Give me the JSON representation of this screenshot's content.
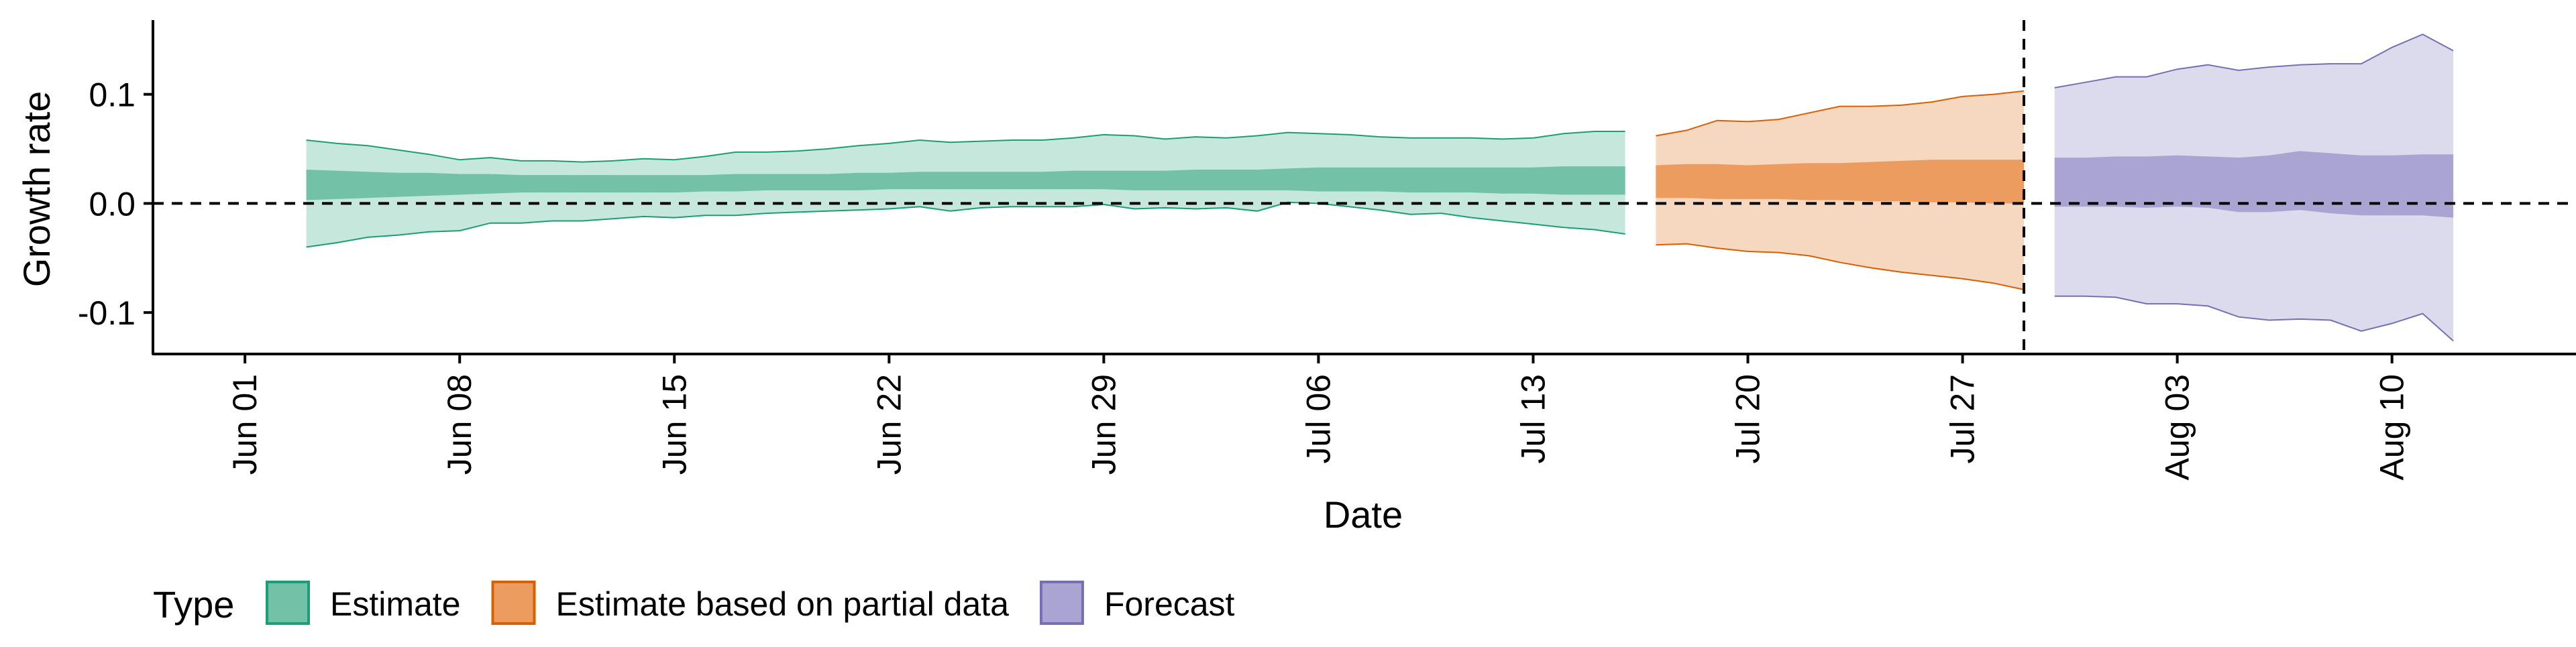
{
  "chart_data": {
    "type": "area",
    "title": "",
    "xlabel": "Date",
    "ylabel": "Growth rate",
    "xlim": [
      "2021-05-29",
      "2021-08-16"
    ],
    "ylim": [
      -0.138,
      0.168
    ],
    "x_ticks": [
      "2021-06-01",
      "2021-06-08",
      "2021-06-15",
      "2021-06-22",
      "2021-06-29",
      "2021-07-06",
      "2021-07-13",
      "2021-07-20",
      "2021-07-27",
      "2021-08-03",
      "2021-08-10"
    ],
    "x_tick_labels": [
      "Jun 01",
      "Jun 08",
      "Jun 15",
      "Jun 22",
      "Jun 29",
      "Jul 06",
      "Jul 13",
      "Jul 20",
      "Jul 27",
      "Aug 03",
      "Aug 10"
    ],
    "y_ticks": [
      -0.1,
      0.0,
      0.1
    ],
    "y_tick_labels": [
      "-0.1",
      "0.0",
      "0.1"
    ],
    "reference_lines": [
      {
        "axis": "y",
        "value": 0.0,
        "style": "dashed",
        "color": "#000000"
      },
      {
        "axis": "x",
        "value": "2021-07-29",
        "style": "dashed",
        "color": "#000000"
      }
    ],
    "grid": false,
    "legend": {
      "title": "Type",
      "position": "bottom-left",
      "entries": [
        {
          "label": "Estimate",
          "fill": "#73c2a7",
          "stroke": "#1b9e77"
        },
        {
          "label": "Estimate based on partial data",
          "fill": "#ec9c5e",
          "stroke": "#d95f02"
        },
        {
          "label": "Forecast",
          "fill": "#a9a4d2",
          "stroke": "#7570b3"
        }
      ]
    },
    "series": [
      {
        "name": "Estimate",
        "type": "Estimate",
        "line_color": "#1b9e77",
        "outer_fill": "#c5e7dc",
        "inner_fill": "#73c2a7",
        "x": [
          "2021-06-03",
          "2021-06-04",
          "2021-06-05",
          "2021-06-06",
          "2021-06-07",
          "2021-06-08",
          "2021-06-09",
          "2021-06-10",
          "2021-06-11",
          "2021-06-12",
          "2021-06-13",
          "2021-06-14",
          "2021-06-15",
          "2021-06-16",
          "2021-06-17",
          "2021-06-18",
          "2021-06-19",
          "2021-06-20",
          "2021-06-21",
          "2021-06-22",
          "2021-06-23",
          "2021-06-24",
          "2021-06-25",
          "2021-06-26",
          "2021-06-27",
          "2021-06-28",
          "2021-06-29",
          "2021-06-30",
          "2021-07-01",
          "2021-07-02",
          "2021-07-03",
          "2021-07-04",
          "2021-07-05",
          "2021-07-06",
          "2021-07-07",
          "2021-07-08",
          "2021-07-09",
          "2021-07-10",
          "2021-07-11",
          "2021-07-12",
          "2021-07-13",
          "2021-07-14",
          "2021-07-15",
          "2021-07-16"
        ],
        "upper_90": [
          0.058,
          0.055,
          0.053,
          0.049,
          0.045,
          0.04,
          0.042,
          0.039,
          0.039,
          0.038,
          0.039,
          0.041,
          0.04,
          0.043,
          0.047,
          0.047,
          0.048,
          0.05,
          0.053,
          0.055,
          0.058,
          0.056,
          0.057,
          0.058,
          0.058,
          0.06,
          0.063,
          0.062,
          0.059,
          0.061,
          0.06,
          0.062,
          0.065,
          0.064,
          0.063,
          0.061,
          0.06,
          0.06,
          0.06,
          0.059,
          0.06,
          0.064,
          0.066,
          0.066
        ],
        "upper_50": [
          0.031,
          0.03,
          0.029,
          0.028,
          0.028,
          0.027,
          0.027,
          0.026,
          0.026,
          0.026,
          0.026,
          0.026,
          0.026,
          0.026,
          0.027,
          0.027,
          0.027,
          0.027,
          0.028,
          0.028,
          0.029,
          0.029,
          0.029,
          0.029,
          0.029,
          0.03,
          0.03,
          0.03,
          0.03,
          0.031,
          0.031,
          0.031,
          0.032,
          0.033,
          0.033,
          0.033,
          0.033,
          0.033,
          0.033,
          0.033,
          0.033,
          0.034,
          0.034,
          0.034
        ],
        "lower_50": [
          0.003,
          0.004,
          0.005,
          0.006,
          0.007,
          0.008,
          0.009,
          0.01,
          0.01,
          0.01,
          0.01,
          0.01,
          0.01,
          0.011,
          0.011,
          0.012,
          0.012,
          0.012,
          0.012,
          0.013,
          0.013,
          0.013,
          0.013,
          0.013,
          0.013,
          0.013,
          0.013,
          0.012,
          0.012,
          0.012,
          0.012,
          0.012,
          0.012,
          0.011,
          0.011,
          0.011,
          0.01,
          0.01,
          0.01,
          0.009,
          0.009,
          0.008,
          0.008,
          0.008
        ],
        "lower_90": [
          -0.04,
          -0.036,
          -0.031,
          -0.029,
          -0.026,
          -0.025,
          -0.018,
          -0.018,
          -0.016,
          -0.016,
          -0.014,
          -0.012,
          -0.013,
          -0.011,
          -0.011,
          -0.009,
          -0.008,
          -0.007,
          -0.006,
          -0.005,
          -0.003,
          -0.007,
          -0.004,
          -0.003,
          -0.003,
          -0.003,
          -0.001,
          -0.005,
          -0.004,
          -0.005,
          -0.004,
          -0.007,
          0.001,
          0.0,
          -0.003,
          -0.006,
          -0.01,
          -0.009,
          -0.013,
          -0.016,
          -0.019,
          -0.022,
          -0.024,
          -0.028
        ]
      },
      {
        "name": "Estimate based on partial data",
        "type": "Estimate based on partial data",
        "line_color": "#d95f02",
        "outer_fill": "#f6d7bf",
        "inner_fill": "#ec9c5e",
        "x": [
          "2021-07-17",
          "2021-07-18",
          "2021-07-19",
          "2021-07-20",
          "2021-07-21",
          "2021-07-22",
          "2021-07-23",
          "2021-07-24",
          "2021-07-25",
          "2021-07-26",
          "2021-07-27",
          "2021-07-28",
          "2021-07-29"
        ],
        "upper_90": [
          0.062,
          0.067,
          0.076,
          0.075,
          0.077,
          0.083,
          0.089,
          0.089,
          0.09,
          0.093,
          0.098,
          0.1,
          0.103
        ],
        "upper_50": [
          0.035,
          0.036,
          0.036,
          0.035,
          0.036,
          0.037,
          0.037,
          0.038,
          0.039,
          0.04,
          0.04,
          0.04,
          0.04
        ],
        "lower_50": [
          0.005,
          0.005,
          0.004,
          0.004,
          0.004,
          0.003,
          0.003,
          0.002,
          0.002,
          0.001,
          0.001,
          0.0,
          0.0
        ],
        "lower_90": [
          -0.038,
          -0.037,
          -0.041,
          -0.044,
          -0.045,
          -0.048,
          -0.054,
          -0.059,
          -0.063,
          -0.066,
          -0.069,
          -0.073,
          -0.079
        ]
      },
      {
        "name": "Forecast",
        "type": "Forecast",
        "line_color": "#7570b3",
        "outer_fill": "#dcdaed",
        "inner_fill": "#a9a4d2",
        "x": [
          "2021-07-30",
          "2021-07-31",
          "2021-08-01",
          "2021-08-02",
          "2021-08-03",
          "2021-08-04",
          "2021-08-05",
          "2021-08-06",
          "2021-08-07",
          "2021-08-08",
          "2021-08-09",
          "2021-08-10",
          "2021-08-11",
          "2021-08-12"
        ],
        "upper_90": [
          0.106,
          0.111,
          0.116,
          0.116,
          0.123,
          0.127,
          0.122,
          0.125,
          0.127,
          0.128,
          0.128,
          0.143,
          0.155,
          0.14
        ],
        "upper_50": [
          0.042,
          0.042,
          0.043,
          0.043,
          0.044,
          0.043,
          0.042,
          0.044,
          0.048,
          0.046,
          0.044,
          0.044,
          0.045,
          0.045
        ],
        "lower_50": [
          -0.003,
          -0.003,
          -0.003,
          -0.004,
          -0.003,
          -0.004,
          -0.008,
          -0.008,
          -0.006,
          -0.009,
          -0.011,
          -0.011,
          -0.011,
          -0.013
        ],
        "lower_90": [
          -0.085,
          -0.085,
          -0.086,
          -0.092,
          -0.092,
          -0.094,
          -0.104,
          -0.107,
          -0.106,
          -0.107,
          -0.117,
          -0.11,
          -0.101,
          -0.126
        ]
      }
    ]
  }
}
